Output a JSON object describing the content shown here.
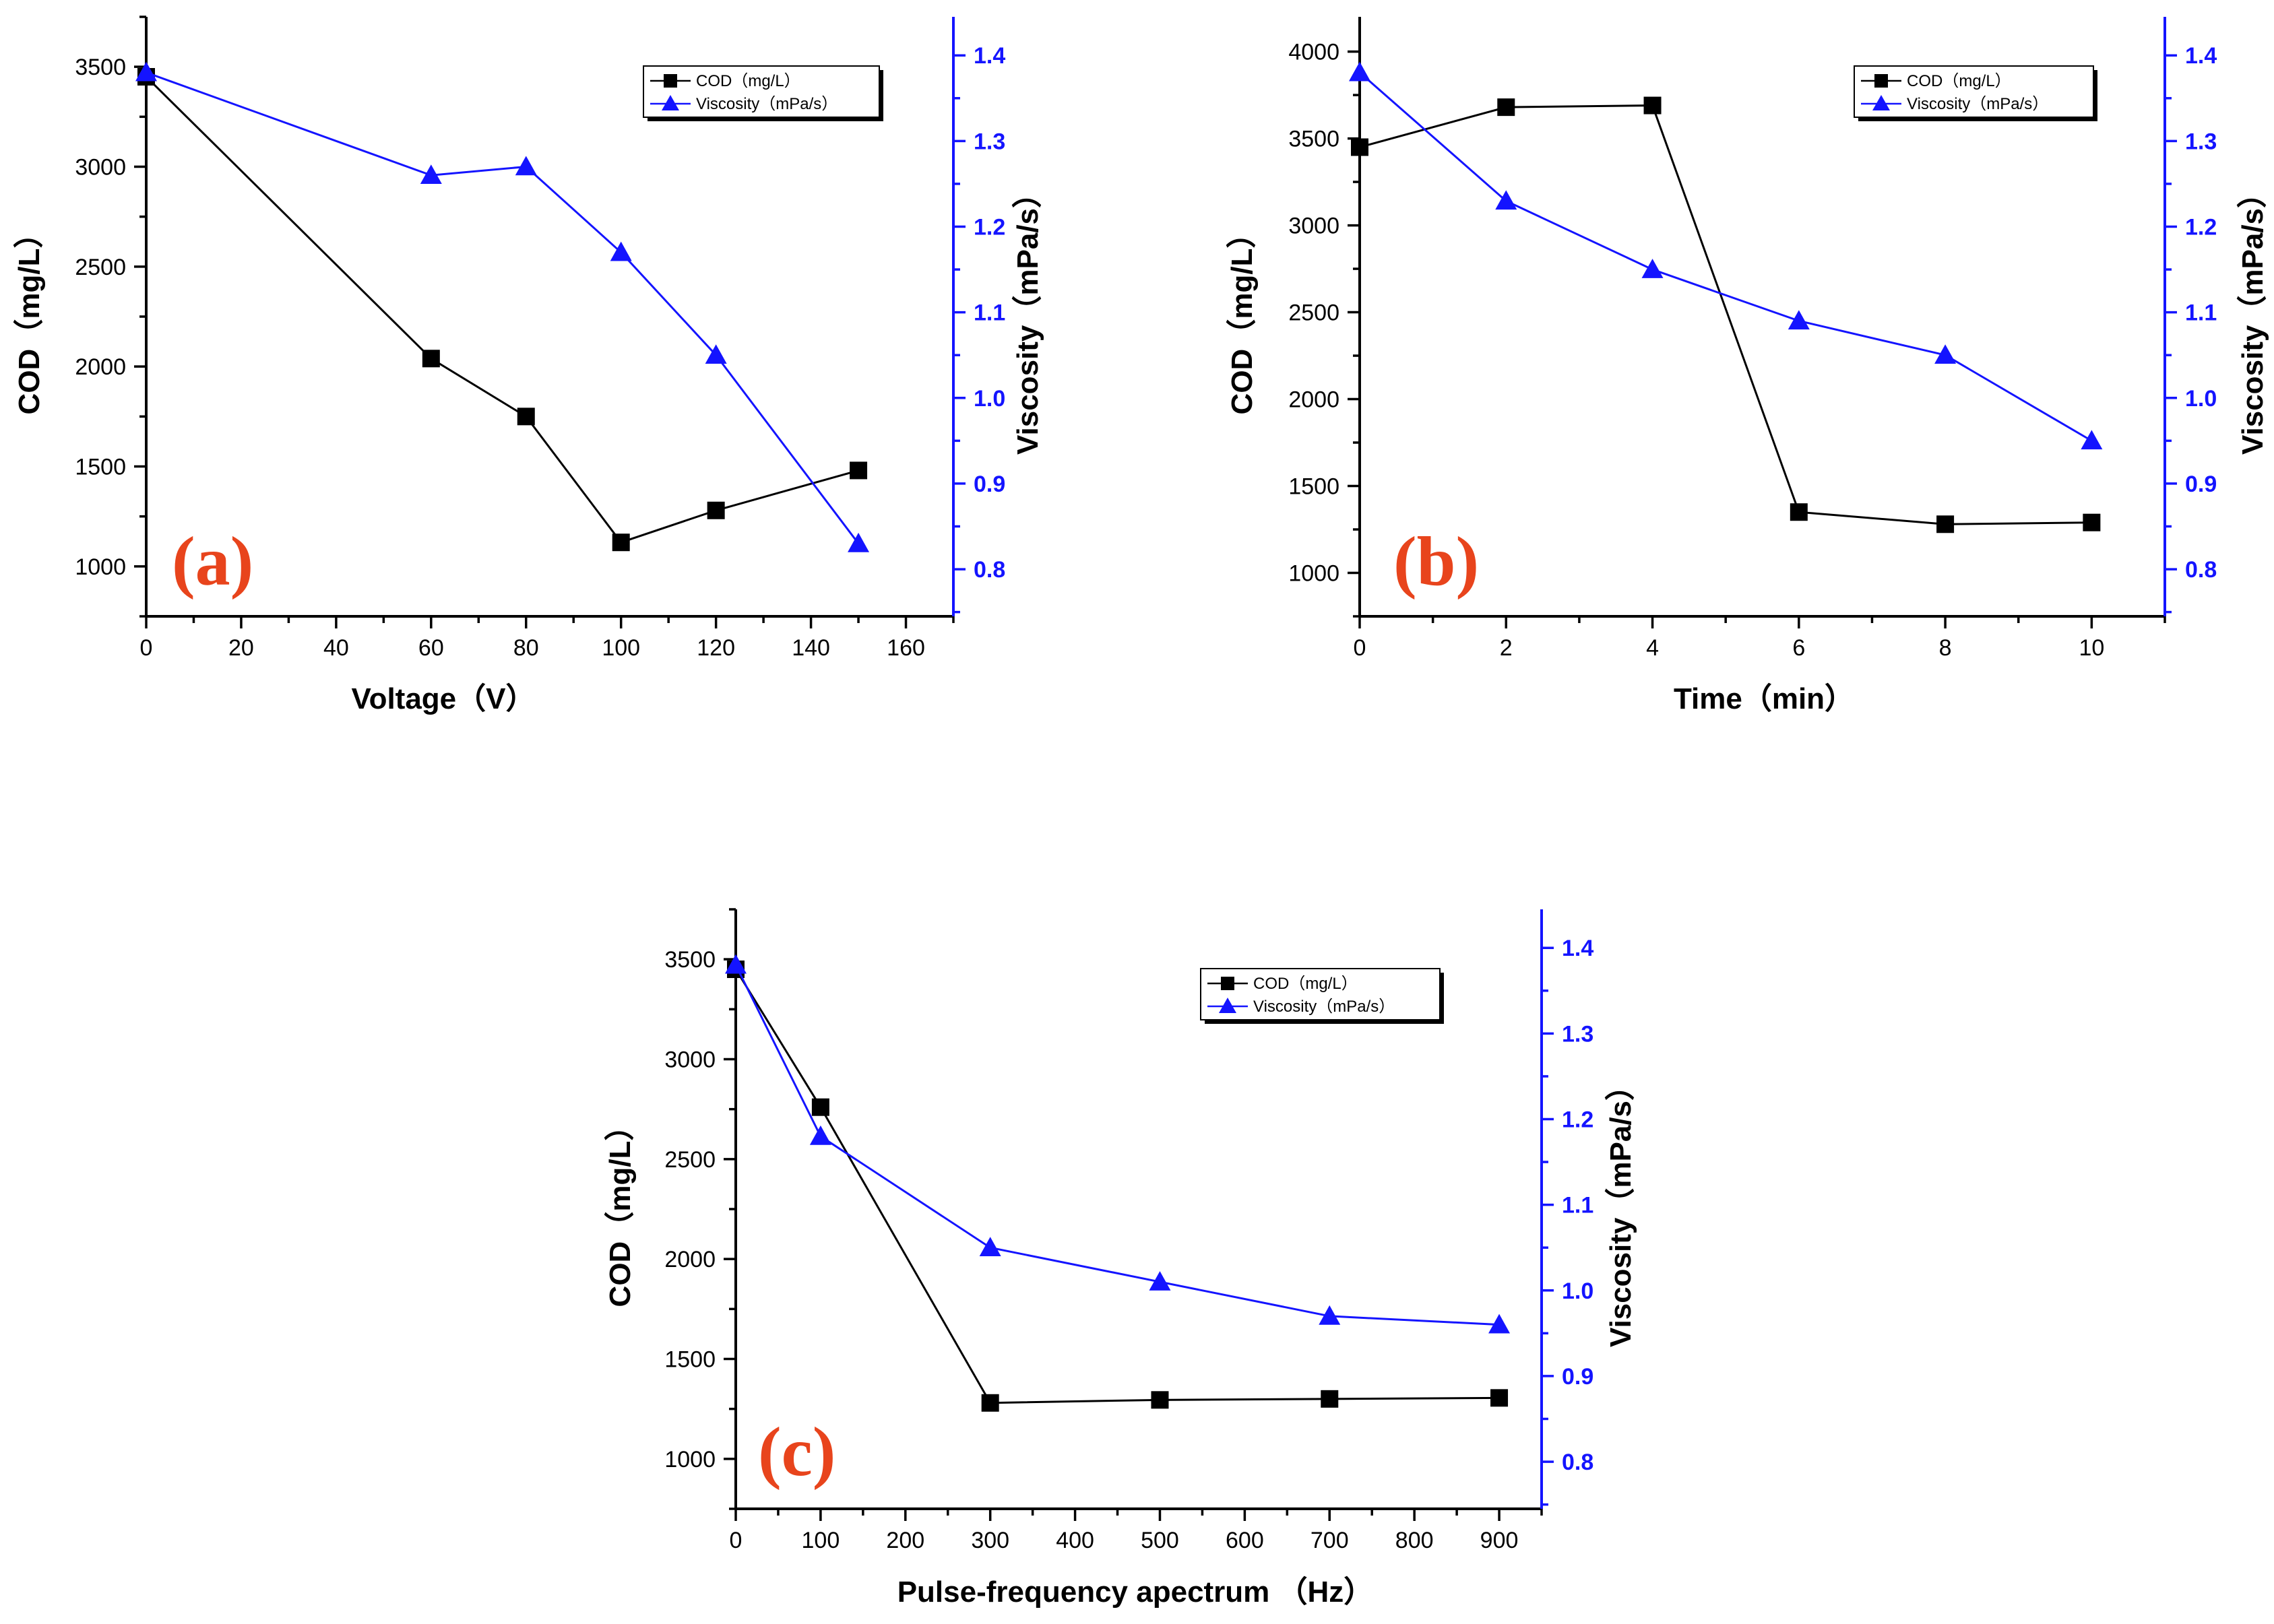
{
  "colors": {
    "cod_series": "#000000",
    "viscosity_series": "#1414ff",
    "panel_label": "#e8441c"
  },
  "chart_data": [
    {
      "type": "line",
      "panel_label": "(a)",
      "xlabel": "Voltage（V）",
      "ylabel": "COD（mg/L）",
      "y2label": "Viscosity（mPa/s）",
      "xlim": [
        0,
        170
      ],
      "ylim": [
        750,
        3750
      ],
      "y2lim": [
        0.745,
        1.445
      ],
      "xticks": [
        0,
        20,
        40,
        60,
        80,
        100,
        120,
        140,
        160
      ],
      "yticks": [
        1000,
        1500,
        2000,
        2500,
        3000,
        3500
      ],
      "y2ticks": [
        0.8,
        0.9,
        1.0,
        1.1,
        1.2,
        1.3,
        1.4
      ],
      "legend_position": "top-right",
      "series": [
        {
          "name": "COD（mg/L）",
          "axis": "left",
          "marker": "square",
          "x": [
            0,
            60,
            80,
            100,
            120,
            150
          ],
          "y": [
            3450,
            2040,
            1750,
            1120,
            1280,
            1480
          ]
        },
        {
          "name": "Viscosity（mPa/s）",
          "axis": "right",
          "marker": "triangle",
          "x": [
            0,
            60,
            80,
            100,
            120,
            150
          ],
          "y": [
            1.38,
            1.26,
            1.27,
            1.17,
            1.05,
            0.83
          ]
        }
      ]
    },
    {
      "type": "line",
      "panel_label": "(b)",
      "xlabel": "Time（min）",
      "ylabel": "COD（mg/L）",
      "y2label": "Viscosity（mPa/s）",
      "xlim": [
        0,
        11
      ],
      "ylim": [
        750,
        4200
      ],
      "y2lim": [
        0.745,
        1.445
      ],
      "xticks": [
        0,
        2,
        4,
        6,
        8,
        10
      ],
      "yticks": [
        1000,
        1500,
        2000,
        2500,
        3000,
        3500,
        4000
      ],
      "y2ticks": [
        0.8,
        0.9,
        1.0,
        1.1,
        1.2,
        1.3,
        1.4
      ],
      "legend_position": "top-right",
      "series": [
        {
          "name": "COD（mg/L）",
          "axis": "left",
          "marker": "square",
          "x": [
            0,
            2,
            4,
            6,
            8,
            10
          ],
          "y": [
            3450,
            3680,
            3690,
            1350,
            1280,
            1290
          ]
        },
        {
          "name": "Viscosity（mPa/s）",
          "axis": "right",
          "marker": "triangle",
          "x": [
            0,
            2,
            4,
            6,
            8,
            10
          ],
          "y": [
            1.38,
            1.23,
            1.15,
            1.09,
            1.05,
            0.95
          ]
        }
      ]
    },
    {
      "type": "line",
      "panel_label": "(c)",
      "xlabel": "Pulse-frequency apectrum （Hz）",
      "ylabel": "COD（mg/L）",
      "y2label": "Viscosity（mPa/s）",
      "xlim": [
        0,
        950
      ],
      "ylim": [
        750,
        3750
      ],
      "y2lim": [
        0.745,
        1.445
      ],
      "xticks": [
        0,
        100,
        200,
        300,
        400,
        500,
        600,
        700,
        800,
        900
      ],
      "yticks": [
        1000,
        1500,
        2000,
        2500,
        3000,
        3500
      ],
      "y2ticks": [
        0.8,
        0.9,
        1.0,
        1.1,
        1.2,
        1.3,
        1.4
      ],
      "legend_position": "top-right",
      "series": [
        {
          "name": "COD（mg/L）",
          "axis": "left",
          "marker": "square",
          "x": [
            0,
            100,
            300,
            500,
            700,
            900
          ],
          "y": [
            3450,
            2760,
            1280,
            1295,
            1300,
            1305
          ]
        },
        {
          "name": "Viscosity（mPa/s）",
          "axis": "right",
          "marker": "triangle",
          "x": [
            0,
            100,
            300,
            500,
            700,
            900
          ],
          "y": [
            1.38,
            1.18,
            1.05,
            1.01,
            0.97,
            0.96
          ]
        }
      ]
    }
  ]
}
